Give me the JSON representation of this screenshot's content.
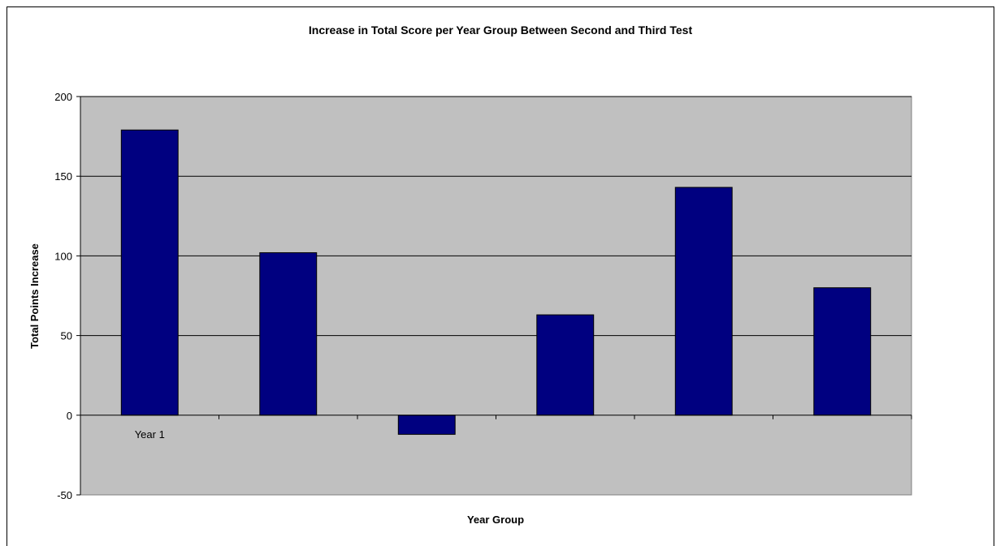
{
  "chart_data": {
    "type": "bar",
    "title": "Increase in Total Score per Year Group Between Second and Third Test",
    "xlabel": "Year Group",
    "ylabel": "Total Points Increase",
    "categories": [
      "Year 1",
      "",
      "",
      "",
      "",
      ""
    ],
    "values": [
      179,
      102,
      -12,
      63,
      143,
      80
    ],
    "ylim": [
      -50,
      200
    ],
    "yticks": [
      -50,
      0,
      50,
      100,
      150,
      200
    ],
    "grid": true,
    "legend": "none",
    "colors": {
      "bar": "#000080",
      "plot_background": "#c0c0c0",
      "gridline": "#000000"
    }
  }
}
